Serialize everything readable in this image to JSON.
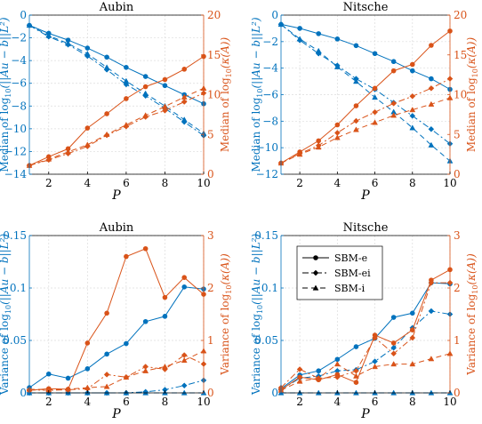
{
  "colors": {
    "left": "#0072BD",
    "right": "#D95319",
    "grid": "#dcdcdc",
    "axis": "#000000"
  },
  "legend": {
    "entries": [
      {
        "label": "SBM-e",
        "style": "solid",
        "marker": "circle"
      },
      {
        "label": "SBM-ei",
        "style": "dashdot",
        "marker": "diamond"
      },
      {
        "label": "SBM-i",
        "style": "dashed",
        "marker": "triangle"
      }
    ]
  },
  "chart_data": [
    {
      "type": "line",
      "title": "Aubin",
      "xlabel": "P",
      "ylabel_left": "Median of log10(||Au − b||_{L²})",
      "ylabel_right": "Median of log10(κ(A))",
      "x": [
        1,
        2,
        3,
        4,
        5,
        6,
        7,
        8,
        9,
        10
      ],
      "xlim": [
        1,
        10
      ],
      "xticks": [
        2,
        4,
        6,
        8,
        10
      ],
      "ylim_left": [
        -14,
        0
      ],
      "yticks_left": [
        0,
        -2,
        -4,
        -6,
        -8,
        -10,
        -12,
        -14
      ],
      "ylim_right": [
        0,
        20
      ],
      "yticks_right": [
        0,
        5,
        10,
        15,
        20
      ],
      "grid": true,
      "series": [
        {
          "name": "SBM-e",
          "axis": "left",
          "values": [
            -0.9,
            -1.6,
            -2.2,
            -2.9,
            -3.7,
            -4.6,
            -5.4,
            -6.2,
            -7.0,
            -7.8
          ]
        },
        {
          "name": "SBM-ei",
          "axis": "left",
          "values": [
            -0.9,
            -1.9,
            -2.6,
            -3.6,
            -4.8,
            -6.1,
            -7.1,
            -8.2,
            -9.4,
            -10.6
          ]
        },
        {
          "name": "SBM-i",
          "axis": "left",
          "values": [
            -0.9,
            -1.8,
            -2.5,
            -3.4,
            -4.6,
            -5.8,
            -6.9,
            -8.0,
            -9.2,
            -10.4
          ]
        },
        {
          "name": "SBM-e",
          "axis": "right",
          "values": [
            1.1,
            2.2,
            3.2,
            5.8,
            7.6,
            9.5,
            11.0,
            11.9,
            13.2,
            14.8
          ]
        },
        {
          "name": "SBM-ei",
          "axis": "right",
          "values": [
            1.1,
            1.8,
            2.6,
            3.5,
            4.9,
            6.0,
            7.2,
            8.0,
            9.1,
            10.2
          ]
        },
        {
          "name": "SBM-i",
          "axis": "right",
          "values": [
            1.1,
            1.9,
            2.8,
            3.7,
            5.0,
            6.2,
            7.4,
            8.5,
            9.7,
            10.8
          ]
        }
      ]
    },
    {
      "type": "line",
      "title": "Nitsche",
      "xlabel": "P",
      "ylabel_left": "Median of log10(||Au − b||_{L²})",
      "ylabel_right": "Median of log10(κ(A))",
      "x": [
        1,
        2,
        3,
        4,
        5,
        6,
        7,
        8,
        9,
        10
      ],
      "xlim": [
        1,
        10
      ],
      "xticks": [
        2,
        4,
        6,
        8,
        10
      ],
      "ylim_left": [
        -12,
        0
      ],
      "yticks_left": [
        0,
        -2,
        -4,
        -6,
        -8,
        -10,
        -12
      ],
      "ylim_right": [
        0,
        20
      ],
      "yticks_right": [
        0,
        5,
        10,
        15,
        20
      ],
      "grid": true,
      "series": [
        {
          "name": "SBM-e",
          "axis": "left",
          "values": [
            -0.7,
            -1.0,
            -1.4,
            -1.8,
            -2.3,
            -2.9,
            -3.5,
            -4.2,
            -4.8,
            -5.6
          ]
        },
        {
          "name": "SBM-ei",
          "axis": "left",
          "values": [
            -0.7,
            -1.9,
            -2.9,
            -3.8,
            -4.8,
            -5.6,
            -6.6,
            -7.6,
            -8.6,
            -9.7
          ]
        },
        {
          "name": "SBM-i",
          "axis": "left",
          "values": [
            -0.7,
            -1.8,
            -2.7,
            -3.9,
            -5.0,
            -6.2,
            -7.3,
            -8.5,
            -9.8,
            -11.0
          ]
        },
        {
          "name": "SBM-e",
          "axis": "right",
          "values": [
            1.4,
            2.8,
            4.2,
            6.2,
            8.6,
            10.8,
            13.0,
            13.8,
            16.2,
            18.0
          ]
        },
        {
          "name": "SBM-ei",
          "axis": "right",
          "values": [
            1.4,
            2.6,
            3.6,
            5.2,
            6.7,
            7.8,
            8.9,
            9.8,
            10.8,
            12.0
          ]
        },
        {
          "name": "SBM-i",
          "axis": "right",
          "values": [
            1.4,
            2.5,
            3.4,
            4.6,
            5.6,
            6.5,
            7.4,
            8.1,
            8.8,
            9.6
          ]
        }
      ]
    },
    {
      "type": "line",
      "title": "Aubin",
      "xlabel": "P",
      "ylabel_left": "Variance of log10(||Au − b||_{L²})",
      "ylabel_right": "Variance of log10(κ(A))",
      "x": [
        1,
        2,
        3,
        4,
        5,
        6,
        7,
        8,
        9,
        10
      ],
      "xlim": [
        1,
        10
      ],
      "xticks": [
        2,
        4,
        6,
        8,
        10
      ],
      "ylim_left": [
        0,
        0.15
      ],
      "yticks_left": [
        0,
        0.05,
        0.1,
        0.15
      ],
      "ylim_right": [
        0,
        3
      ],
      "yticks_right": [
        0,
        1,
        2,
        3
      ],
      "grid": true,
      "series": [
        {
          "name": "SBM-e",
          "axis": "left",
          "values": [
            0.005,
            0.018,
            0.014,
            0.023,
            0.037,
            0.047,
            0.068,
            0.073,
            0.101,
            0.099
          ]
        },
        {
          "name": "SBM-ei",
          "axis": "left",
          "values": [
            0.0,
            0.0,
            0.0,
            0.0,
            0.0,
            0.0,
            0.001,
            0.003,
            0.007,
            0.012
          ]
        },
        {
          "name": "SBM-i",
          "axis": "left",
          "values": [
            0.0,
            0.0,
            0.0,
            0.0,
            0.0,
            0.0,
            0.0,
            0.0,
            0.0,
            0.0
          ]
        },
        {
          "name": "SBM-e",
          "axis": "right",
          "values": [
            0.05,
            0.08,
            0.07,
            0.95,
            1.52,
            2.6,
            2.75,
            1.82,
            2.2,
            1.88
          ]
        },
        {
          "name": "SBM-ei",
          "axis": "right",
          "values": [
            0.06,
            0.05,
            0.06,
            0.08,
            0.35,
            0.3,
            0.5,
            0.45,
            0.72,
            0.55
          ]
        },
        {
          "name": "SBM-i",
          "axis": "right",
          "values": [
            0.07,
            0.06,
            0.07,
            0.1,
            0.12,
            0.3,
            0.42,
            0.5,
            0.62,
            0.8
          ]
        }
      ]
    },
    {
      "type": "line",
      "title": "Nitsche",
      "xlabel": "P",
      "ylabel_left": "Variance of log10(||Au − b||_{L²})",
      "ylabel_right": "Variance of log10(κ(A))",
      "x": [
        1,
        2,
        3,
        4,
        5,
        6,
        7,
        8,
        9,
        10
      ],
      "xlim": [
        1,
        10
      ],
      "xticks": [
        2,
        4,
        6,
        8,
        10
      ],
      "ylim_left": [
        0,
        0.15
      ],
      "yticks_left": [
        0,
        0.05,
        0.1,
        0.15
      ],
      "ylim_right": [
        0,
        3
      ],
      "yticks_right": [
        0,
        1,
        2,
        3
      ],
      "grid": true,
      "series": [
        {
          "name": "SBM-e",
          "axis": "left",
          "values": [
            0.004,
            0.017,
            0.021,
            0.032,
            0.044,
            0.052,
            0.072,
            0.076,
            0.105,
            0.104
          ]
        },
        {
          "name": "SBM-ei",
          "axis": "left",
          "values": [
            0.003,
            0.014,
            0.016,
            0.021,
            0.022,
            0.03,
            0.043,
            0.062,
            0.078,
            0.075
          ]
        },
        {
          "name": "SBM-i",
          "axis": "left",
          "values": [
            0.0,
            0.0,
            0.0,
            0.0,
            0.0,
            0.0,
            0.0,
            0.0,
            0.0,
            0.0
          ]
        },
        {
          "name": "SBM-e",
          "axis": "right",
          "values": [
            0.06,
            0.3,
            0.25,
            0.35,
            0.2,
            1.1,
            0.95,
            1.2,
            2.15,
            2.35
          ]
        },
        {
          "name": "SBM-ei",
          "axis": "right",
          "values": [
            0.1,
            0.45,
            0.28,
            0.3,
            0.42,
            1.05,
            0.75,
            1.05,
            2.1,
            2.1
          ]
        },
        {
          "name": "SBM-i",
          "axis": "right",
          "values": [
            0.05,
            0.22,
            0.28,
            0.55,
            0.32,
            0.5,
            0.55,
            0.55,
            0.65,
            0.75
          ]
        }
      ]
    }
  ]
}
